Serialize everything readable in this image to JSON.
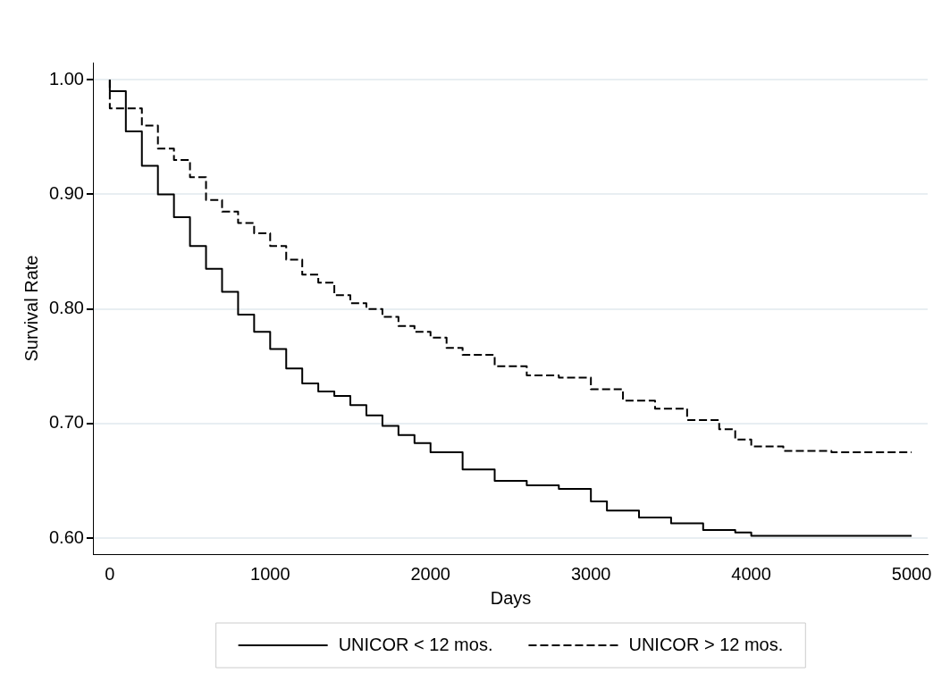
{
  "chart_data": {
    "type": "step",
    "xlabel": "Days",
    "ylabel": "Survival Rate",
    "xlim": [
      -100,
      5100
    ],
    "ylim": [
      0.586,
      1.015
    ],
    "xticks": [
      0,
      1000,
      2000,
      3000,
      4000,
      5000
    ],
    "yticks": [
      {
        "value": 0.6,
        "label": "0.60"
      },
      {
        "value": 0.7,
        "label": "0.70"
      },
      {
        "value": 0.8,
        "label": "0.80"
      },
      {
        "value": 0.9,
        "label": "0.90"
      },
      {
        "value": 1.0,
        "label": "1.00"
      }
    ],
    "grid": "y",
    "legend": "bottom",
    "marker": "none",
    "series": [
      {
        "name": "UNICOR < 12 mos.",
        "color": "#000000",
        "line_style": "solid",
        "x": [
          0,
          100,
          200,
          300,
          400,
          500,
          600,
          700,
          800,
          900,
          1000,
          1100,
          1200,
          1300,
          1400,
          1500,
          1600,
          1700,
          1800,
          1900,
          2000,
          2200,
          2400,
          2600,
          2800,
          3000,
          3100,
          3300,
          3500,
          3700,
          3900,
          4000,
          4100,
          5000
        ],
        "values": [
          1.0,
          0.99,
          0.955,
          0.925,
          0.9,
          0.88,
          0.855,
          0.835,
          0.815,
          0.795,
          0.78,
          0.765,
          0.748,
          0.735,
          0.728,
          0.724,
          0.716,
          0.707,
          0.698,
          0.69,
          0.683,
          0.675,
          0.66,
          0.65,
          0.646,
          0.643,
          0.632,
          0.624,
          0.618,
          0.613,
          0.607,
          0.605,
          0.602,
          0.602
        ]
      },
      {
        "name": "UNICOR > 12 mos.",
        "color": "#000000",
        "line_style": "dashed",
        "x": [
          0,
          200,
          300,
          400,
          500,
          600,
          700,
          800,
          900,
          1000,
          1100,
          1200,
          1300,
          1400,
          1500,
          1600,
          1700,
          1800,
          1900,
          2000,
          2100,
          2200,
          2400,
          2600,
          2800,
          3000,
          3200,
          3400,
          3600,
          3800,
          3900,
          4000,
          4200,
          4500,
          5000
        ],
        "values": [
          1.0,
          0.975,
          0.96,
          0.94,
          0.93,
          0.915,
          0.895,
          0.885,
          0.875,
          0.866,
          0.855,
          0.843,
          0.83,
          0.823,
          0.812,
          0.805,
          0.8,
          0.793,
          0.785,
          0.78,
          0.775,
          0.766,
          0.76,
          0.75,
          0.742,
          0.74,
          0.73,
          0.72,
          0.713,
          0.703,
          0.695,
          0.686,
          0.68,
          0.676,
          0.675
        ]
      }
    ]
  }
}
